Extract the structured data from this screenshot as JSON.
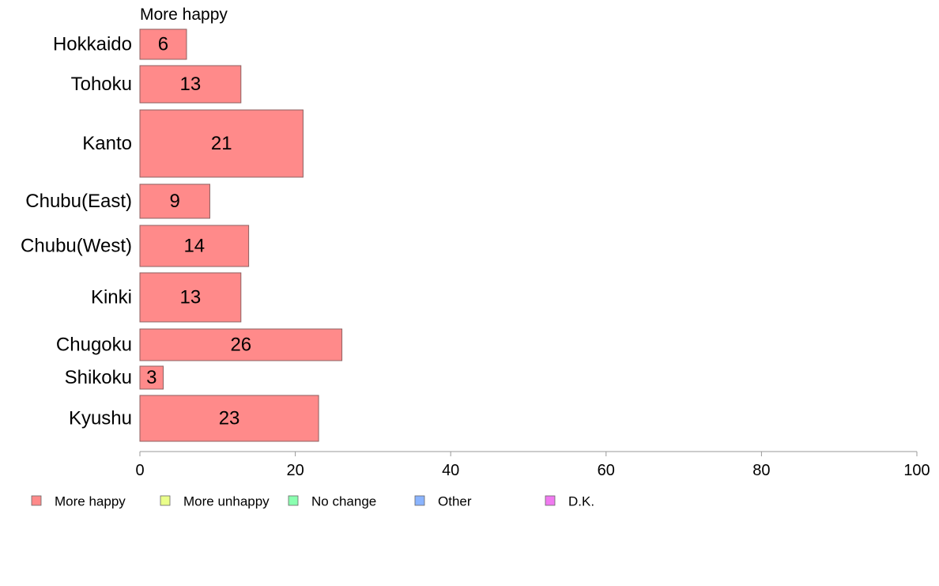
{
  "chart_data": {
    "type": "bar",
    "orientation": "horizontal",
    "stacked": true,
    "series_header": "More happy",
    "categories": [
      "Hokkaido",
      "Tohoku",
      "Kanto",
      "Chubu(East)",
      "Chubu(West)",
      "Kinki",
      "Chugoku",
      "Shikoku",
      "Kyushu"
    ],
    "series": [
      {
        "name": "More happy",
        "values": [
          6,
          13,
          21,
          9,
          14,
          13,
          26,
          3,
          23
        ],
        "color": "#ff8a8a"
      }
    ],
    "data_labels": [
      "6",
      "13",
      "21",
      "9",
      "14",
      "13",
      "26",
      "3",
      "23"
    ],
    "xlim": [
      0,
      100
    ],
    "xticks": [
      0,
      20,
      40,
      60,
      80,
      100
    ],
    "grid": false,
    "legend_position": "bottom",
    "legend": [
      {
        "label": "More happy",
        "color": "#ff8a8a"
      },
      {
        "label": "More unhappy",
        "color": "#eaff8a"
      },
      {
        "label": "No change",
        "color": "#8affb0"
      },
      {
        "label": "Other",
        "color": "#8ab4ff"
      },
      {
        "label": "D.K.",
        "color": "#f07af0"
      }
    ]
  }
}
